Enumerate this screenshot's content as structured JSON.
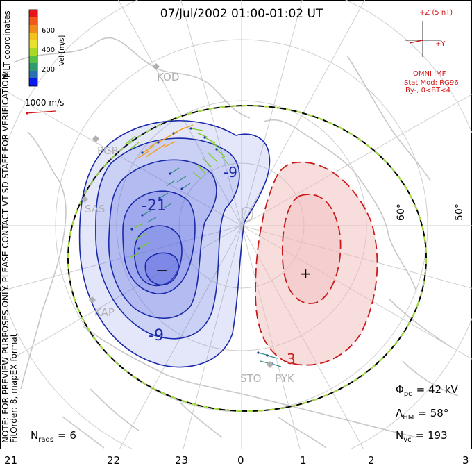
{
  "title": "07/Jul/2002 01:00-01:02 UT",
  "colorbar": {
    "label": "Vel [m/s]",
    "ticks": [
      "600",
      "400",
      "200"
    ],
    "colors": [
      "#e8141c",
      "#f05a1c",
      "#f08c18",
      "#f2c21e",
      "#a8d828",
      "#58c04a",
      "#2f9a6e",
      "#2a6fb0",
      "#1838d8",
      "#0a18f0"
    ]
  },
  "coord_label": "MLT coordinates",
  "scale_label": "1000 m/s",
  "watermark": "NOTE: FOR PREVIEW PURPOSES ONLY. PLEASE CONTACT VT-SD STAFF FOR VERIFICATION.",
  "fit_label": "FitOrder: 8, mapEX format",
  "imf": {
    "z_label": "+Z (5 nT)",
    "y_label": "+Y",
    "source": "OMNI IMF",
    "model": "Stat Mod: RG96",
    "condition": "By-, 0<BT<4"
  },
  "stations": [
    "KOD",
    "PGR",
    "SAS",
    "KAP",
    "STO",
    "PYK"
  ],
  "latitude_labels": [
    "60°",
    "50°"
  ],
  "contours": {
    "negative": [
      "-21",
      "-9"
    ],
    "positive": [
      "3"
    ],
    "min_marker": "−",
    "max_marker": "+"
  },
  "stats": {
    "phi_sym": "Φ",
    "phi_sub": "pc",
    "phi_val": "= 42 kV",
    "lam_sym": "Λ",
    "lam_sub": "HM",
    "lam_val": "= 58°",
    "nvc_sym": "N",
    "nvc_sub": "vc",
    "nvc_val": "= 193",
    "nrads_sym": "N",
    "nrads_sub": "rads",
    "nrads_val": "= 6"
  },
  "mlt_axis": [
    "21",
    "22",
    "23",
    "0",
    "1",
    "2",
    "3"
  ],
  "colors": {
    "negative_fill": "#5a68e0",
    "negative_line": "#1a2aa8",
    "positive_fill": "#f0b4b4",
    "positive_line": "#cc1a1a",
    "coast": "#c8c8c8",
    "grid": "#cfcfcf",
    "hmb_dash": "#a6e03a"
  }
}
